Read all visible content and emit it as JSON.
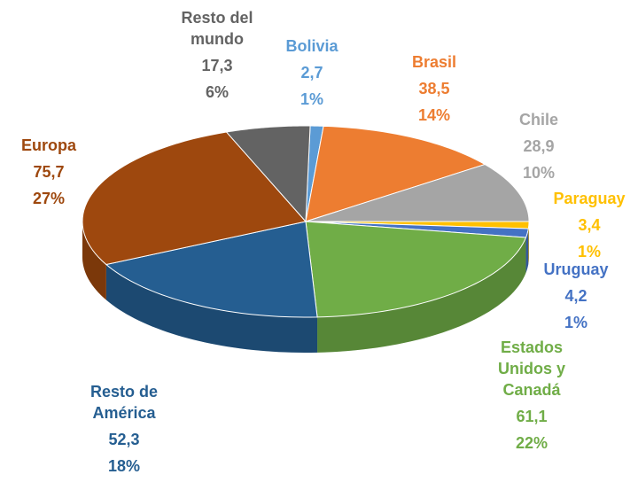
{
  "chart_data": {
    "type": "pie",
    "categories": [
      "Bolivia",
      "Brasil",
      "Chile",
      "Paraguay",
      "Uruguay",
      "Estados Unidos y Canadá",
      "Resto de América",
      "Europa",
      "Resto del mundo"
    ],
    "values": [
      2.7,
      38.5,
      28.9,
      3.4,
      4.2,
      61.1,
      52.3,
      75.7,
      17.3
    ],
    "value_labels": [
      "2,7",
      "38,5",
      "28,9",
      "3,4",
      "4,2",
      "61,1",
      "52,3",
      "75,7",
      "17,3"
    ],
    "percent_labels": [
      "1%",
      "14%",
      "10%",
      "1%",
      "1%",
      "22%",
      "18%",
      "27%",
      "6%"
    ],
    "colors": [
      "#5b9bd5",
      "#ed7d31",
      "#a5a5a5",
      "#ffc000",
      "#4472c4",
      "#70ad47",
      "#255e91",
      "#9e480e",
      "#636363"
    ]
  }
}
